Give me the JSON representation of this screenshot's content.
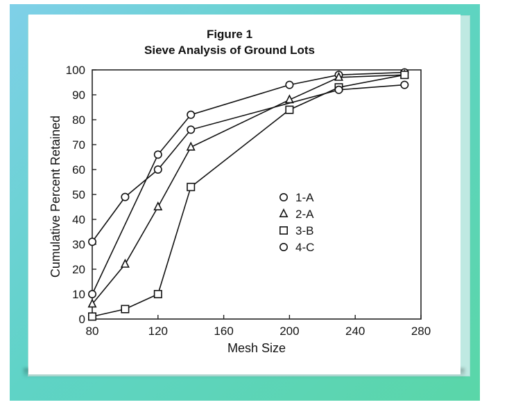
{
  "chart_data": {
    "type": "line",
    "title": "Figure 1",
    "subtitle": "Sieve Analysis of Ground Lots",
    "xlabel": "Mesh Size",
    "ylabel": "Cumulative Percent Retained",
    "xlim": [
      80,
      280
    ],
    "ylim": [
      0,
      100
    ],
    "x_ticks": [
      80,
      120,
      160,
      200,
      240,
      280
    ],
    "y_ticks": [
      0,
      10,
      20,
      30,
      40,
      50,
      60,
      70,
      80,
      90,
      100
    ],
    "grid": false,
    "legend_position": "center-right",
    "series": [
      {
        "name": "1-A",
        "marker": "circle",
        "x": [
          80,
          120,
          140,
          200,
          230,
          270
        ],
        "y": [
          10,
          66,
          82,
          94,
          98,
          99
        ]
      },
      {
        "name": "2-A",
        "marker": "triangle",
        "x": [
          80,
          100,
          120,
          140,
          200,
          230,
          270
        ],
        "y": [
          6,
          22,
          45,
          69,
          88,
          97,
          98
        ]
      },
      {
        "name": "3-B",
        "marker": "square",
        "x": [
          80,
          100,
          120,
          140,
          200,
          230,
          270
        ],
        "y": [
          1,
          4,
          10,
          53,
          84,
          93,
          98
        ]
      },
      {
        "name": "4-C",
        "marker": "circle",
        "x": [
          80,
          100,
          120,
          140,
          230,
          270
        ],
        "y": [
          31,
          49,
          60,
          76,
          92,
          94
        ]
      }
    ]
  }
}
